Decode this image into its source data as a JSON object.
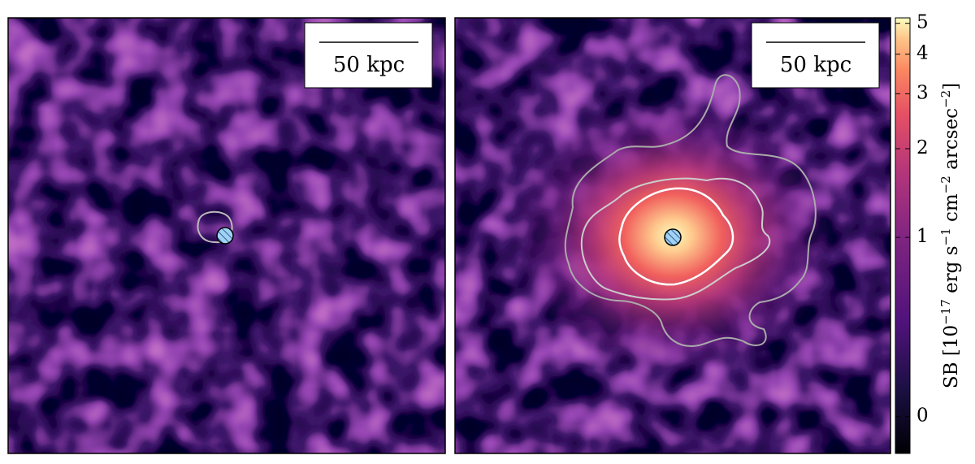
{
  "panels": [
    {
      "scale_bar": "50 kpc"
    },
    {
      "scale_bar": "50 kpc"
    }
  ],
  "colorbar": {
    "label_parts": [
      "SB [10",
      "−17",
      " erg s",
      "−1",
      " cm",
      "−2",
      " arcsec",
      "−2",
      "]"
    ],
    "lim": [
      -0.16,
      5.2
    ],
    "ticks": [
      0,
      1,
      2,
      3,
      4,
      5
    ],
    "scale": "asinh"
  }
}
